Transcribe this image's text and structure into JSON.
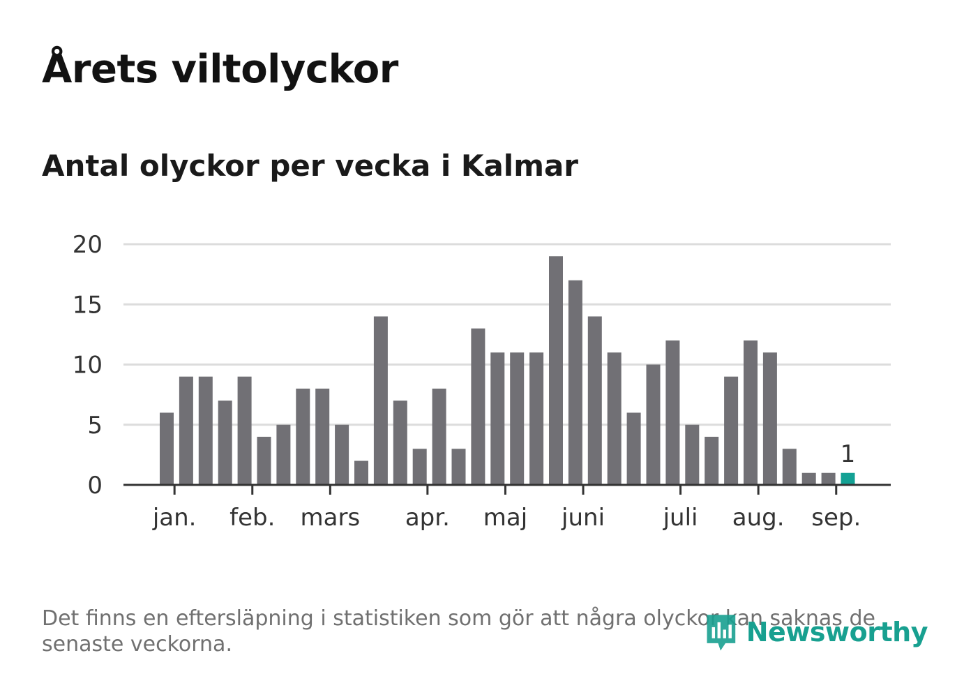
{
  "title": "Årets viltolyckor",
  "subtitle": "Antal olyckor per vecka i Kalmar",
  "note": "Det finns en eftersläpning i statistiken som gör att några olyckor kan saknas de senaste veckorna.",
  "logo": {
    "text": "Newsworthy",
    "icon": "newsworthy-logo-icon"
  },
  "colors": {
    "bar": "#717075",
    "highlight": "#13a194",
    "grid": "#dcdcdc",
    "axis": "#333333"
  },
  "chart_data": {
    "type": "bar",
    "values": [
      6,
      9,
      9,
      7,
      9,
      4,
      5,
      8,
      8,
      5,
      2,
      14,
      7,
      3,
      8,
      3,
      13,
      11,
      11,
      11,
      19,
      17,
      14,
      11,
      6,
      10,
      12,
      5,
      4,
      9,
      12,
      11,
      3,
      1,
      1,
      1
    ],
    "highlight_index": 35,
    "highlight_label": "1",
    "ylim": [
      0,
      20
    ],
    "yticks": [
      0,
      5,
      10,
      15,
      20
    ],
    "month_labels": [
      "jan.",
      "feb.",
      "mars",
      "apr.",
      "maj",
      "juni",
      "juli",
      "aug.",
      "sep."
    ],
    "month_label_positions": [
      0.4,
      4.4,
      8.4,
      13.4,
      17.4,
      21.4,
      26.4,
      30.4,
      34.4
    ],
    "grid": true
  }
}
